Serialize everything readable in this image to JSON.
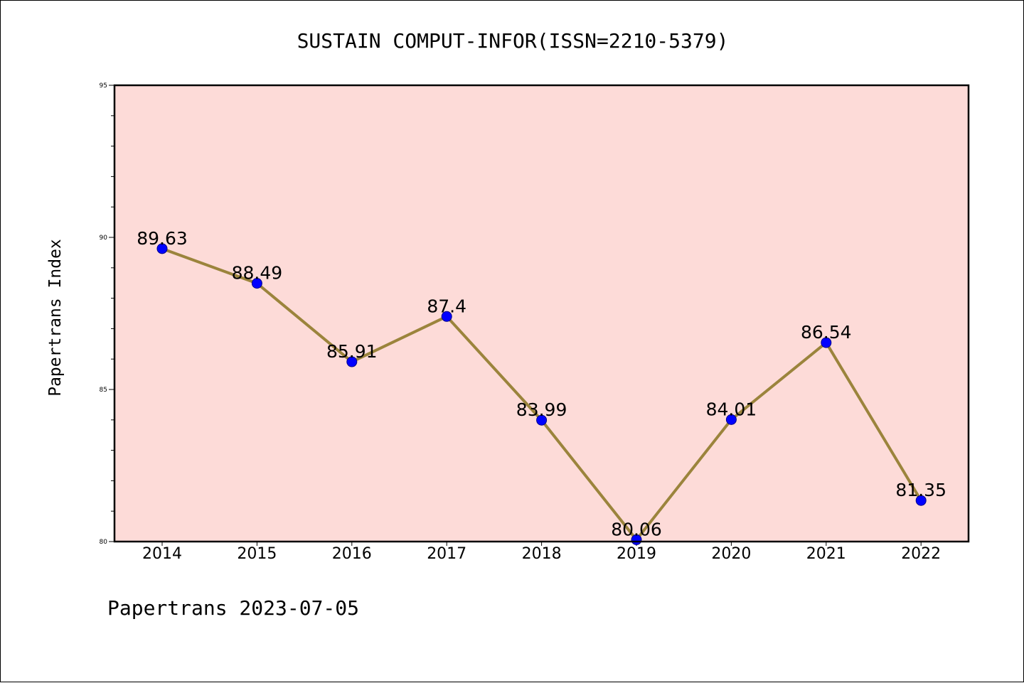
{
  "chart_data": {
    "type": "line",
    "title": "SUSTAIN COMPUT-INFOR(ISSN=2210-5379)",
    "xlabel": "",
    "ylabel": "Papertrans Index",
    "categories": [
      "2014",
      "2015",
      "2016",
      "2017",
      "2018",
      "2019",
      "2020",
      "2021",
      "2022"
    ],
    "values": [
      89.63,
      88.49,
      85.91,
      87.4,
      83.99,
      80.06,
      84.01,
      86.54,
      81.35
    ],
    "data_labels": [
      "89.63",
      "88.49",
      "85.91",
      "87.4",
      "83.99",
      "80.06",
      "84.01",
      "86.54",
      "81.35"
    ],
    "ylim": [
      80,
      95
    ],
    "yticks": [
      80,
      85,
      90,
      95
    ],
    "ytick_labels": [
      "80",
      "85",
      "90",
      "95"
    ],
    "grid": false,
    "colors": {
      "plot_background": "#fddbd8",
      "line": "#9b843c",
      "marker": "#0000ff"
    }
  },
  "footer": {
    "text": "Papertrans 2023-07-05"
  }
}
